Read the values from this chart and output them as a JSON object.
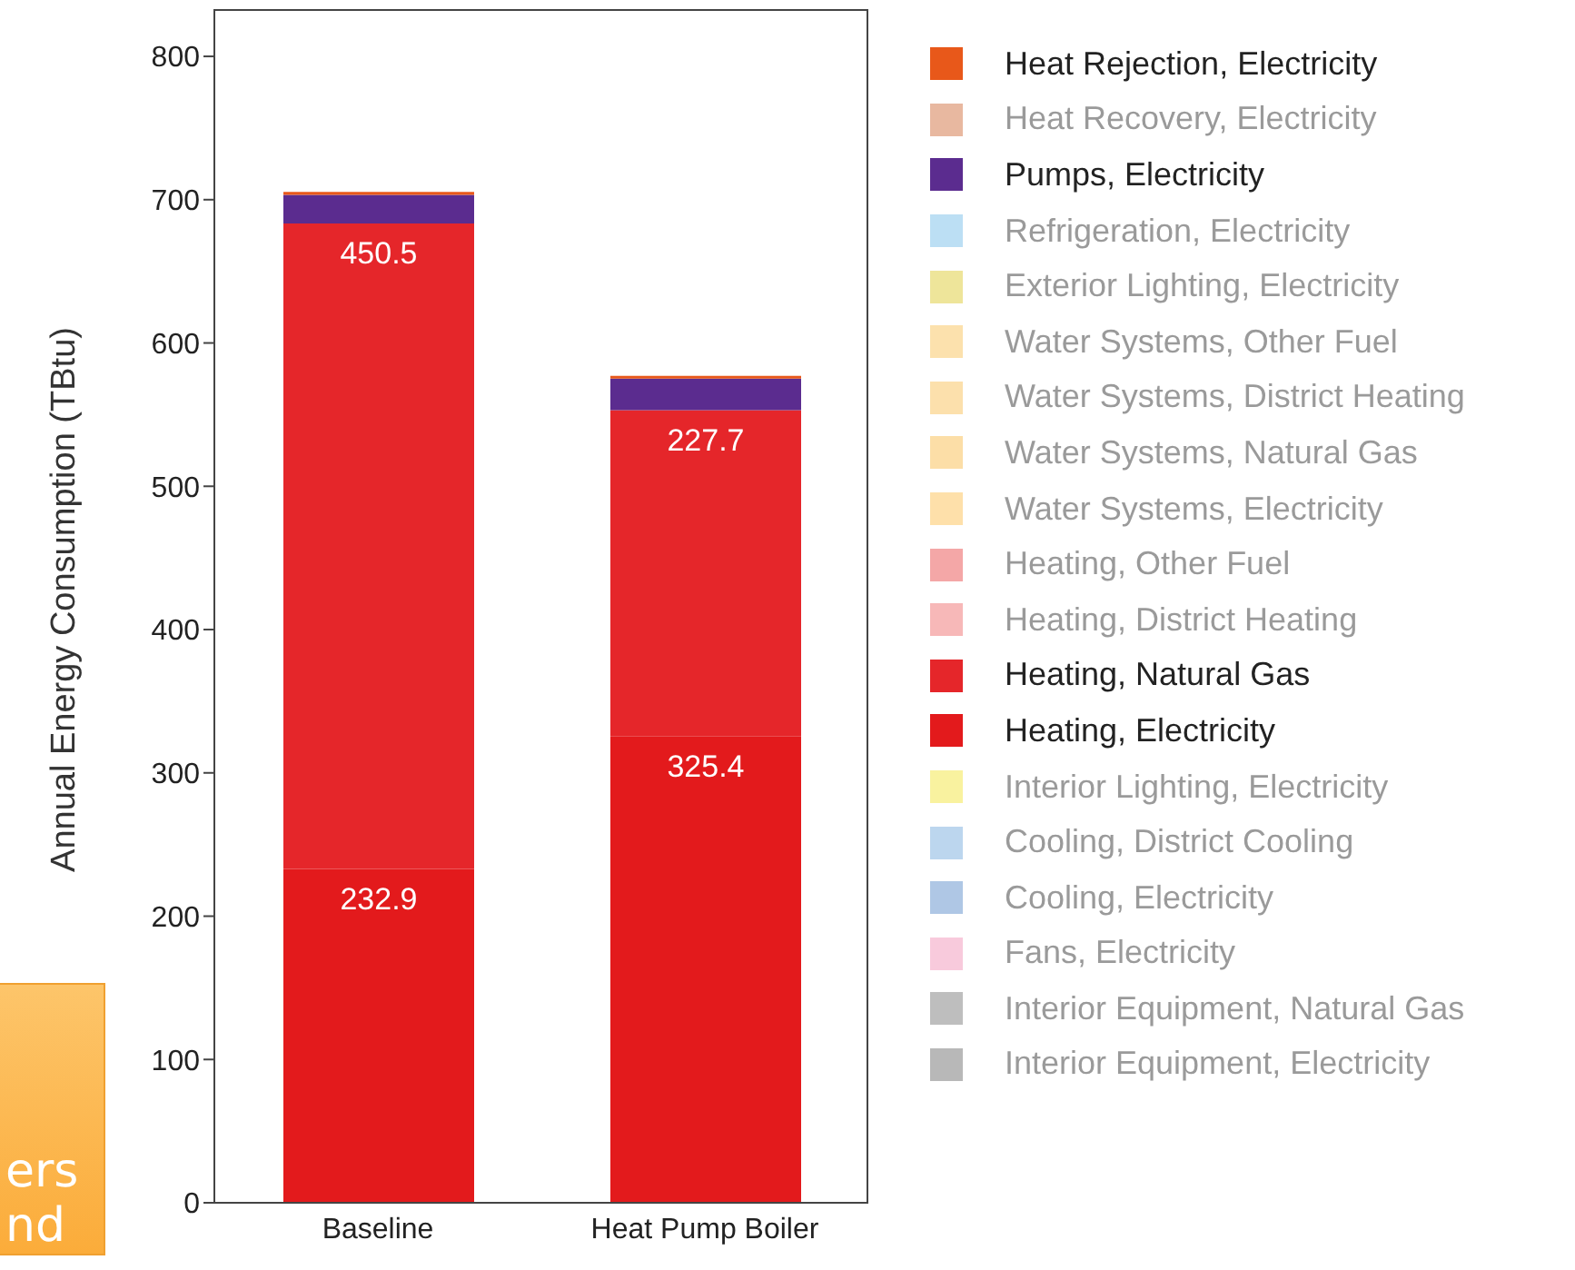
{
  "chart_data": {
    "type": "bar",
    "stacked": true,
    "ylabel": "Annual Energy Consumption (TBtu)",
    "categories": [
      "Baseline",
      "Heat Pump Boiler"
    ],
    "ylim": [
      0,
      833
    ],
    "yticks": [
      0,
      100,
      200,
      300,
      400,
      500,
      600,
      700,
      800
    ],
    "grid": false,
    "legend": "right",
    "annotations": [
      "ers",
      "nd"
    ],
    "series": [
      {
        "name": "Interior Equipment, Electricity",
        "color": "#a0a0a0",
        "values": [
          null,
          null
        ]
      },
      {
        "name": "Interior Equipment, Natural Gas",
        "color": "#a8a8a8",
        "values": [
          null,
          null
        ]
      },
      {
        "name": "Fans, Electricity",
        "color": "#f5b8d0",
        "values": [
          null,
          null
        ]
      },
      {
        "name": "Cooling, Electricity",
        "color": "#94b4dc",
        "values": [
          null,
          null
        ]
      },
      {
        "name": "Cooling, District Cooling",
        "color": "#a6c8e8",
        "values": [
          null,
          null
        ]
      },
      {
        "name": "Interior Lighting, Electricity",
        "color": "#f7ee7f",
        "values": [
          null,
          null
        ]
      },
      {
        "name": "Heating, Electricity",
        "color": "#e31a1c",
        "values": [
          232.9,
          325.4
        ],
        "value_labels": [
          "232.9",
          "325.4"
        ]
      },
      {
        "name": "Heating, Natural Gas",
        "color": "#e5262a",
        "values": [
          450.5,
          227.7
        ],
        "value_labels": [
          "450.5",
          "227.7"
        ]
      },
      {
        "name": "Heating, District Heating",
        "color": "#f4a0a0",
        "values": [
          null,
          null
        ]
      },
      {
        "name": "Heating, Other Fuel",
        "color": "#f08a8a",
        "values": [
          null,
          null
        ]
      },
      {
        "name": "Water Systems, Electricity",
        "color": "#fdd58e",
        "values": [
          null,
          null
        ]
      },
      {
        "name": "Water Systems, Natural Gas",
        "color": "#fbd38a",
        "values": [
          null,
          null
        ]
      },
      {
        "name": "Water Systems, District Heating",
        "color": "#fbd590",
        "values": [
          null,
          null
        ]
      },
      {
        "name": "Water Systems, Other Fuel",
        "color": "#fbd792",
        "values": [
          null,
          null
        ]
      },
      {
        "name": "Exterior Lighting, Electricity",
        "color": "#e8dc78",
        "values": [
          null,
          null
        ]
      },
      {
        "name": "Refrigeration, Electricity",
        "color": "#a6d4f0",
        "values": [
          null,
          null
        ]
      },
      {
        "name": "Pumps, Electricity",
        "color": "#5b2c8f",
        "values": [
          20,
          22
        ]
      },
      {
        "name": "Heat Recovery, Electricity",
        "color": "#e0a080",
        "values": [
          null,
          null
        ]
      },
      {
        "name": "Heat Rejection, Electricity",
        "color": "#e8581a",
        "values": [
          2,
          2
        ]
      }
    ]
  }
}
